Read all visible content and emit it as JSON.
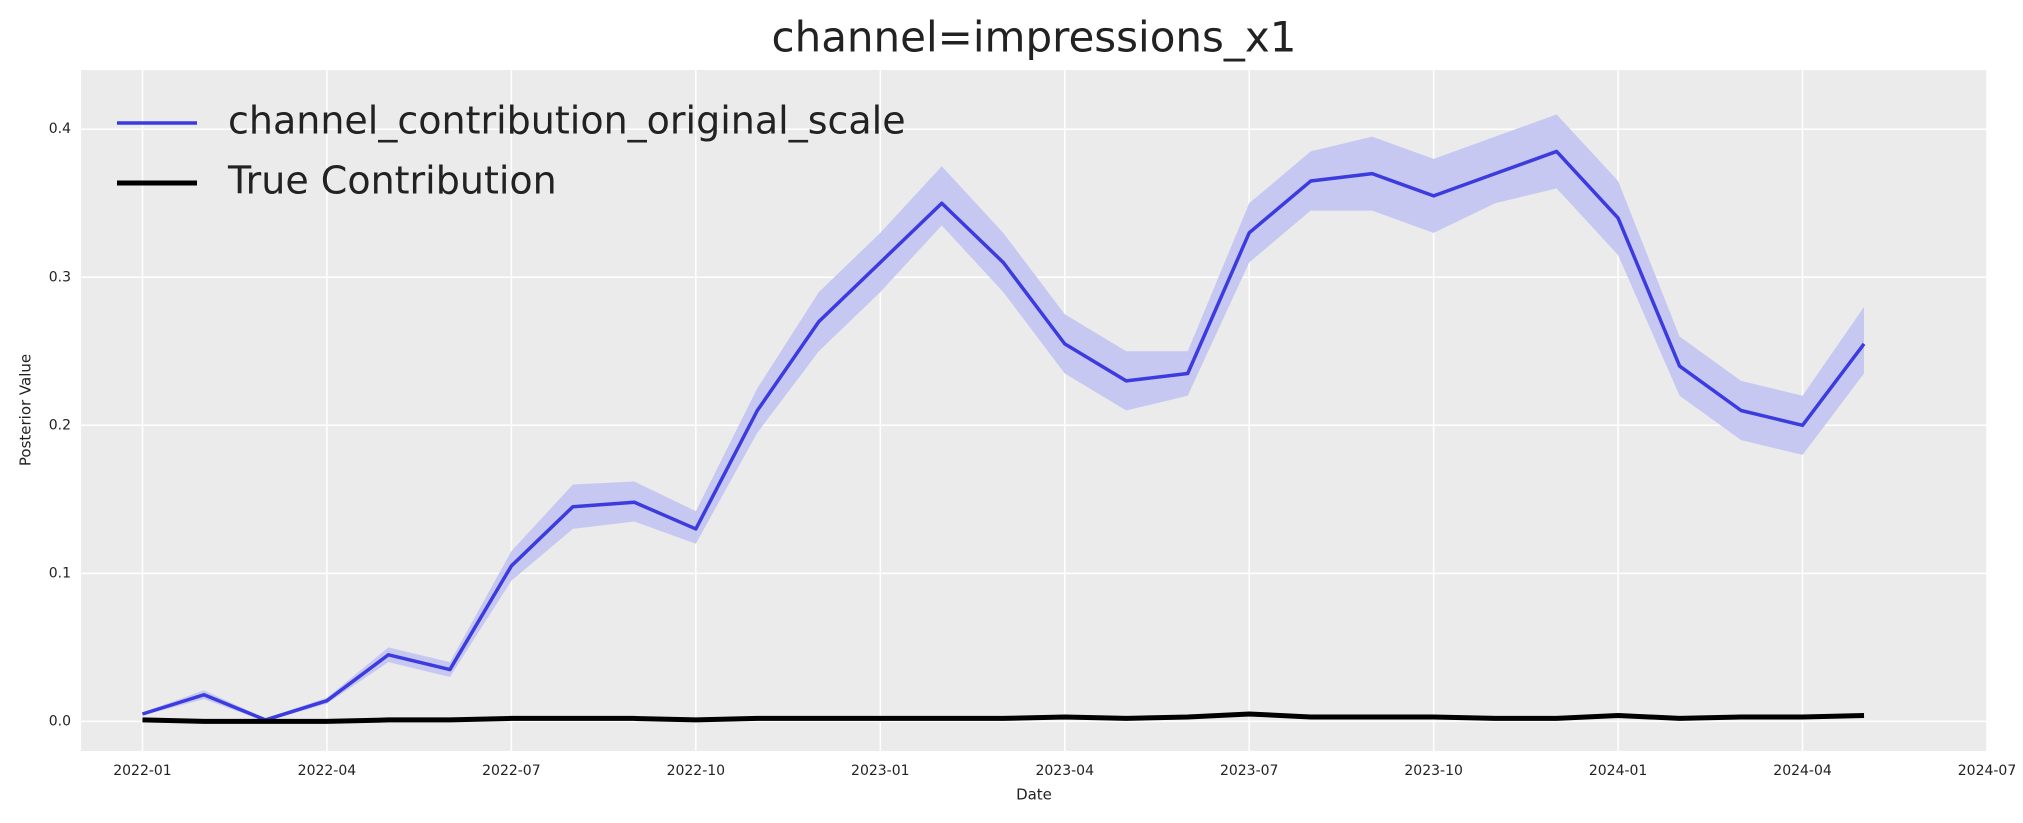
{
  "chart_data": {
    "type": "line",
    "title": "channel=impressions_x1",
    "x_label": "Date",
    "y_label": "Posterior Value",
    "x": [
      "2022-01",
      "2022-02",
      "2022-03",
      "2022-04",
      "2022-05",
      "2022-06",
      "2022-07",
      "2022-08",
      "2022-09",
      "2022-10",
      "2022-11",
      "2022-12",
      "2023-01",
      "2023-02",
      "2023-03",
      "2023-04",
      "2023-05",
      "2023-06",
      "2023-07",
      "2023-08",
      "2023-09",
      "2023-10",
      "2023-11",
      "2023-12",
      "2024-01",
      "2024-02",
      "2024-03",
      "2024-04",
      "2024-05"
    ],
    "series": [
      {
        "name": "channel_contribution_original_scale",
        "color": "#3b3be0",
        "band_color": "#c6c8f1",
        "values": [
          0.005,
          0.018,
          0.001,
          0.014,
          0.045,
          0.035,
          0.105,
          0.145,
          0.148,
          0.13,
          0.21,
          0.27,
          0.31,
          0.35,
          0.31,
          0.255,
          0.23,
          0.235,
          0.33,
          0.365,
          0.37,
          0.355,
          0.37,
          0.385,
          0.34,
          0.24,
          0.21,
          0.2,
          0.255
        ],
        "hdi_upper": [
          0.006,
          0.021,
          0.002,
          0.016,
          0.05,
          0.04,
          0.115,
          0.16,
          0.162,
          0.142,
          0.225,
          0.29,
          0.33,
          0.375,
          0.33,
          0.275,
          0.25,
          0.25,
          0.35,
          0.385,
          0.395,
          0.38,
          0.395,
          0.41,
          0.365,
          0.26,
          0.23,
          0.22,
          0.28
        ],
        "hdi_lower": [
          0.004,
          0.015,
          0.0,
          0.012,
          0.04,
          0.03,
          0.095,
          0.13,
          0.135,
          0.12,
          0.195,
          0.25,
          0.29,
          0.335,
          0.29,
          0.235,
          0.21,
          0.22,
          0.31,
          0.345,
          0.345,
          0.33,
          0.35,
          0.36,
          0.315,
          0.22,
          0.19,
          0.18,
          0.235
        ]
      },
      {
        "name": "True Contribution",
        "color": "#000000",
        "values": [
          0.001,
          0.0,
          0.0,
          0.0,
          0.001,
          0.001,
          0.002,
          0.002,
          0.002,
          0.001,
          0.002,
          0.002,
          0.002,
          0.002,
          0.002,
          0.003,
          0.002,
          0.003,
          0.005,
          0.003,
          0.003,
          0.003,
          0.002,
          0.002,
          0.004,
          0.002,
          0.003,
          0.003,
          0.004
        ]
      }
    ],
    "xlim": [
      "2021-12",
      "2024-07"
    ],
    "xticks": [
      "2022-01",
      "2022-04",
      "2022-07",
      "2022-10",
      "2023-01",
      "2023-04",
      "2023-07",
      "2023-10",
      "2024-01",
      "2024-04",
      "2024-07"
    ],
    "ylim": [
      -0.02,
      0.44
    ],
    "yticks": [
      {
        "value": 0,
        "label": "0.0"
      },
      0.1,
      0.2,
      0.3,
      0.4
    ],
    "grid": true,
    "legend": "upper-left"
  }
}
